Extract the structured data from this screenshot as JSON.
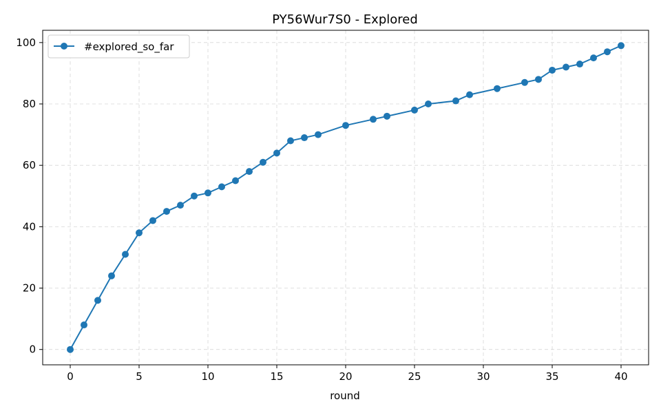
{
  "chart_data": {
    "type": "line",
    "title": "PY56Wur7S0 - Explored",
    "xlabel": "round",
    "ylabel": "",
    "xlim": [
      -2,
      42
    ],
    "ylim": [
      -5,
      104
    ],
    "xticks": [
      0,
      5,
      10,
      15,
      20,
      25,
      30,
      35,
      40
    ],
    "yticks": [
      0,
      20,
      40,
      60,
      80,
      100
    ],
    "grid": true,
    "legend_position": "top-left",
    "series": [
      {
        "name": "#explored_so_far",
        "color": "#1f77b4",
        "marker": "circle",
        "x": [
          0,
          1,
          2,
          3,
          4,
          5,
          6,
          7,
          8,
          9,
          10,
          11,
          12,
          13,
          14,
          15,
          16,
          17,
          18,
          20,
          22,
          23,
          25,
          26,
          28,
          29,
          31,
          33,
          34,
          35,
          36,
          37,
          38,
          39,
          40
        ],
        "y": [
          0,
          8,
          16,
          24,
          31,
          38,
          42,
          45,
          47,
          50,
          51,
          53,
          55,
          58,
          61,
          64,
          68,
          69,
          70,
          73,
          75,
          76,
          78,
          80,
          81,
          83,
          85,
          87,
          88,
          91,
          92,
          93,
          95,
          97,
          99
        ]
      }
    ]
  }
}
